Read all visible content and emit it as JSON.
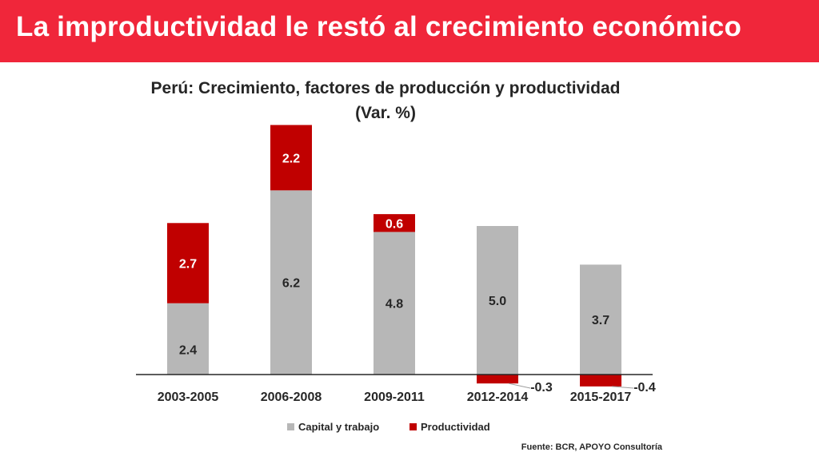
{
  "banner": {
    "title": "La improductividad le restó al crecimiento económico",
    "color": "#f0263a"
  },
  "source": "Fuente: BCR, APOYO Consultoría",
  "chart_data": {
    "type": "bar",
    "stacked": true,
    "title": "Perú: Crecimiento, factores de producción y productividad",
    "subtitle": "(Var. %)",
    "categories": [
      "2003-2005",
      "2006-2008",
      "2009-2011",
      "2012-2014",
      "2015-2017"
    ],
    "series": [
      {
        "name": "Capital y trabajo",
        "color": "#b7b7b7",
        "values": [
          2.4,
          6.2,
          4.8,
          5.0,
          3.7
        ]
      },
      {
        "name": "Productividad",
        "color": "#c00000",
        "values": [
          2.7,
          2.2,
          0.6,
          -0.3,
          -0.4
        ]
      }
    ],
    "data_labels": {
      "Capital y trabajo": [
        "2.4",
        "6.2",
        "4.8",
        "5.0",
        "3.7"
      ],
      "Productividad": [
        "2.7",
        "2.2",
        "0.6",
        "-0.3",
        "-0.4"
      ]
    },
    "ylim": [
      -0.5,
      8.5
    ],
    "grid": false,
    "legend": "bottom",
    "xlabel": "",
    "ylabel": ""
  }
}
